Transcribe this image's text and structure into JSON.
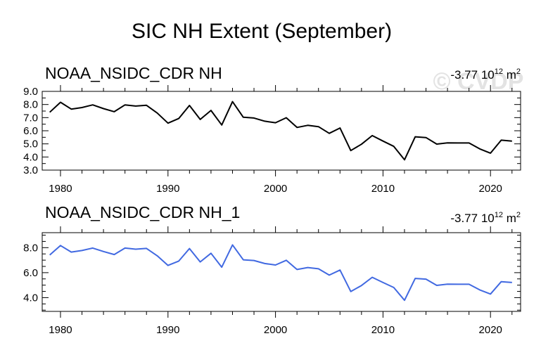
{
  "title": "SIC NH Extent (September)",
  "watermark": "© CVDP",
  "colors": {
    "panel1_line": "#000000",
    "panel2_line": "#4169E1",
    "watermark": "#e3e3e3"
  },
  "chart_data": [
    {
      "type": "line",
      "title": "NOAA_NSIDC_CDR NH",
      "trend": {
        "value": "-3.77 10",
        "exponent": "12",
        "unit": " m",
        "unit_exponent": "2"
      },
      "xlim": [
        1978.3,
        2022.8
      ],
      "ylim": [
        3.0,
        9.0
      ],
      "yticks": [
        3.0,
        4.0,
        5.0,
        6.0,
        7.0,
        8.0,
        9.0
      ],
      "ytick_labels": [
        "3.0",
        "4.0",
        "5.0",
        "6.0",
        "7.0",
        "8.0",
        "9.0"
      ],
      "xticks": [
        1980,
        1990,
        2000,
        2010,
        2020
      ],
      "xtick_labels": [
        "1980",
        "1990",
        "2000",
        "2010",
        "2020"
      ],
      "series": [
        {
          "name": "NOAA_NSIDC_CDR NH",
          "x": [
            1979,
            1980,
            1981,
            1982,
            1983,
            1984,
            1985,
            1986,
            1987,
            1988,
            1989,
            1990,
            1991,
            1992,
            1993,
            1994,
            1995,
            1996,
            1997,
            1998,
            1999,
            2000,
            2001,
            2002,
            2003,
            2004,
            2005,
            2006,
            2007,
            2008,
            2009,
            2010,
            2011,
            2012,
            2013,
            2014,
            2015,
            2016,
            2017,
            2018,
            2019,
            2020,
            2021,
            2022
          ],
          "values": [
            7.41,
            8.17,
            7.65,
            7.77,
            7.97,
            7.69,
            7.45,
            7.97,
            7.88,
            7.94,
            7.35,
            6.58,
            6.93,
            7.93,
            6.86,
            7.55,
            6.44,
            8.22,
            7.03,
            6.97,
            6.73,
            6.61,
            6.99,
            6.25,
            6.41,
            6.31,
            5.8,
            6.21,
            4.49,
            4.97,
            5.63,
            5.21,
            4.81,
            3.79,
            5.54,
            5.48,
            4.98,
            5.08,
            5.07,
            5.07,
            4.62,
            4.29,
            5.28,
            5.21
          ]
        }
      ]
    },
    {
      "type": "line",
      "title": "NOAA_NSIDC_CDR NH_1",
      "trend": {
        "value": "-3.77 10",
        "exponent": "12",
        "unit": " m",
        "unit_exponent": "2"
      },
      "xlim": [
        1978.3,
        2022.8
      ],
      "ylim": [
        2.9,
        9.2
      ],
      "yticks": [
        4.0,
        6.0,
        8.0
      ],
      "ytick_labels": [
        "4.0",
        "6.0",
        "8.0"
      ],
      "xticks": [
        1980,
        1990,
        2000,
        2010,
        2020
      ],
      "xtick_labels": [
        "1980",
        "1990",
        "2000",
        "2010",
        "2020"
      ],
      "series": [
        {
          "name": "NOAA_NSIDC_CDR NH_1",
          "x": [
            1979,
            1980,
            1981,
            1982,
            1983,
            1984,
            1985,
            1986,
            1987,
            1988,
            1989,
            1990,
            1991,
            1992,
            1993,
            1994,
            1995,
            1996,
            1997,
            1998,
            1999,
            2000,
            2001,
            2002,
            2003,
            2004,
            2005,
            2006,
            2007,
            2008,
            2009,
            2010,
            2011,
            2012,
            2013,
            2014,
            2015,
            2016,
            2017,
            2018,
            2019,
            2020,
            2021,
            2022
          ],
          "values": [
            7.41,
            8.17,
            7.65,
            7.77,
            7.97,
            7.69,
            7.45,
            7.97,
            7.88,
            7.94,
            7.35,
            6.58,
            6.93,
            7.93,
            6.86,
            7.55,
            6.44,
            8.22,
            7.03,
            6.97,
            6.73,
            6.61,
            6.99,
            6.25,
            6.41,
            6.31,
            5.8,
            6.21,
            4.49,
            4.97,
            5.63,
            5.21,
            4.81,
            3.79,
            5.54,
            5.48,
            4.98,
            5.08,
            5.07,
            5.07,
            4.62,
            4.29,
            5.28,
            5.21
          ]
        }
      ]
    }
  ]
}
